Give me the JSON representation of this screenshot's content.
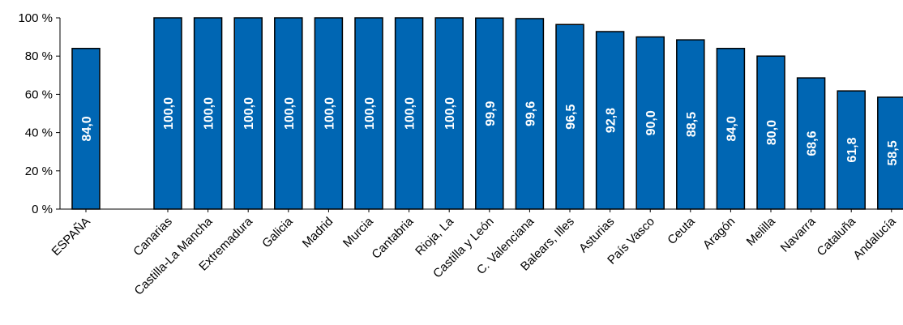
{
  "chart_data": {
    "type": "bar",
    "categories": [
      "ESPAÑA",
      "Canarias",
      "Castilla-La Mancha",
      "Extremadura",
      "Galicia",
      "Madrid",
      "Murcia",
      "Cantabria",
      "Rioja, La",
      "Castilla y León",
      "C. Valenciana",
      "Balears, Illes",
      "Asturias",
      "País Vasco",
      "Ceuta",
      "Aragón",
      "Melilla",
      "Navarra",
      "Cataluña",
      "Andalucía"
    ],
    "values": [
      84.0,
      100.0,
      100.0,
      100.0,
      100.0,
      100.0,
      100.0,
      100.0,
      100.0,
      99.9,
      99.6,
      96.5,
      92.8,
      90.0,
      88.5,
      84.0,
      80.0,
      68.6,
      61.8,
      58.5
    ],
    "data_labels": [
      "84,0",
      "100,0",
      "100,0",
      "100,0",
      "100,0",
      "100,0",
      "100,0",
      "100,0",
      "100,0",
      "99,9",
      "99,6",
      "96,5",
      "92,8",
      "90,0",
      "88,5",
      "84,0",
      "80,0",
      "68,6",
      "61,8",
      "58,5"
    ],
    "y_ticks": [
      "0 %",
      "20 %",
      "40 %",
      "60 %",
      "80 %",
      "100 %"
    ],
    "ylim": [
      0,
      100
    ],
    "grid": false,
    "bar_color": "#0066b3",
    "bar_border_color": "#000000",
    "title": "",
    "xlabel": "",
    "ylabel": ""
  }
}
